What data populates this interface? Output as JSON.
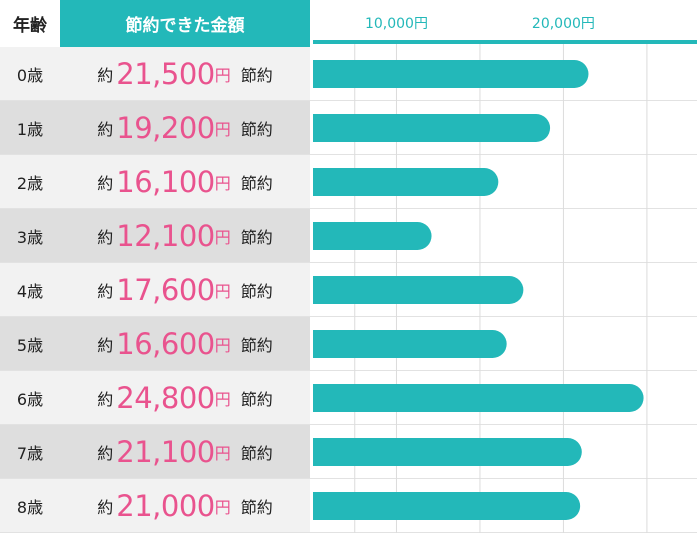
{
  "header": {
    "age_label": "年齢",
    "saved_label": "節約できた金額"
  },
  "amount_prefix": "約",
  "amount_unit": "円",
  "amount_suffix": "節約",
  "colors": {
    "accent": "#23b8b9",
    "amount": "#e9538e"
  },
  "chart_data": {
    "type": "bar",
    "orientation": "horizontal",
    "x_ticks": [
      "10,000円",
      "20,000円"
    ],
    "tick_values": [
      10000,
      20000
    ],
    "xlim": [
      5000,
      28000
    ],
    "grid": true,
    "categories": [
      "0歳",
      "1歳",
      "2歳",
      "3歳",
      "4歳",
      "5歳",
      "6歳",
      "7歳",
      "8歳"
    ],
    "values": [
      21500,
      19200,
      16100,
      12100,
      17600,
      16600,
      24800,
      21100,
      21000
    ],
    "value_labels": [
      "21,500",
      "19,200",
      "16,100",
      "12,100",
      "17,600",
      "16,600",
      "24,800",
      "21,100",
      "21,000"
    ]
  }
}
